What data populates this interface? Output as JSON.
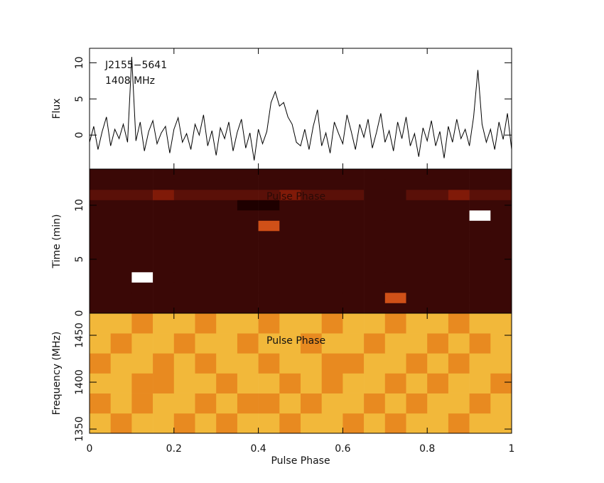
{
  "chart_data": [
    {
      "type": "line",
      "ylabel": "Flux",
      "annotations": [
        "J2155−5641",
        "1408 MHz"
      ],
      "color": "#000000",
      "x": [
        0,
        0.01,
        0.02,
        0.03,
        0.04,
        0.05,
        0.06,
        0.07,
        0.08,
        0.09,
        0.1,
        0.11,
        0.12,
        0.13,
        0.14,
        0.15,
        0.16,
        0.17,
        0.18,
        0.19,
        0.2,
        0.21,
        0.22,
        0.23,
        0.24,
        0.25,
        0.26,
        0.27,
        0.28,
        0.29,
        0.3,
        0.31,
        0.32,
        0.33,
        0.34,
        0.35,
        0.36,
        0.37,
        0.38,
        0.39,
        0.4,
        0.41,
        0.42,
        0.43,
        0.44,
        0.45,
        0.46,
        0.47,
        0.48,
        0.49,
        0.5,
        0.51,
        0.52,
        0.53,
        0.54,
        0.55,
        0.56,
        0.57,
        0.58,
        0.59,
        0.6,
        0.61,
        0.62,
        0.63,
        0.64,
        0.65,
        0.66,
        0.67,
        0.68,
        0.69,
        0.7,
        0.71,
        0.72,
        0.73,
        0.74,
        0.75,
        0.76,
        0.77,
        0.78,
        0.79,
        0.8,
        0.81,
        0.82,
        0.83,
        0.84,
        0.85,
        0.86,
        0.87,
        0.88,
        0.89,
        0.9,
        0.91,
        0.92,
        0.93,
        0.94,
        0.95,
        0.96,
        0.97,
        0.98,
        0.99,
        1
      ],
      "values": [
        -1,
        1.2,
        -2,
        0.5,
        2.5,
        -1.5,
        0.8,
        -0.5,
        1.5,
        -1,
        10.8,
        -0.8,
        1.8,
        -2.2,
        0.5,
        2,
        -1.2,
        0.3,
        1.2,
        -2.5,
        0.8,
        2.4,
        -1,
        0.2,
        -2,
        1.5,
        0,
        2.8,
        -1.5,
        0.6,
        -2.8,
        1,
        -0.5,
        1.8,
        -2.2,
        0.4,
        2.2,
        -1.8,
        0.3,
        -3.5,
        0.8,
        -1.2,
        0.5,
        4.5,
        6,
        4,
        4.5,
        2.5,
        1.5,
        -1,
        -1.5,
        0.8,
        -2,
        1.2,
        3.5,
        -1.5,
        0.3,
        -2.5,
        1.8,
        0.2,
        -1.2,
        2.8,
        0.5,
        -2,
        1.5,
        -0.3,
        2.2,
        -1.8,
        0.4,
        3,
        -1,
        0.6,
        -2.2,
        1.8,
        -0.5,
        2.5,
        -1.5,
        0.2,
        -3,
        1,
        -0.8,
        2,
        -1.5,
        0.5,
        -3.2,
        1.2,
        -1,
        2.2,
        -0.5,
        0.8,
        -1.5,
        2.5,
        9,
        1.5,
        -1,
        0.8,
        -2,
        1.8,
        -0.6,
        3,
        -2
      ],
      "xlim": [
        0,
        1
      ],
      "xticks": [
        0,
        0.2,
        0.4,
        0.6,
        0.8,
        1
      ],
      "ylim": [
        -4.7,
        12
      ],
      "yticks": [
        0,
        5,
        10
      ]
    },
    {
      "type": "heatmap",
      "ylabel": "Time (min)",
      "annotations": [
        "Pulse Phase"
      ],
      "colormap": "heat",
      "xlim": [
        0,
        1
      ],
      "xticks": [
        0,
        0.2,
        0.4,
        0.6,
        0.8,
        1
      ],
      "ylim": [
        0,
        13.35
      ],
      "yticks": [
        0,
        5,
        10
      ],
      "z": [
        [
          1,
          1,
          1,
          1,
          1,
          1,
          1,
          1,
          1,
          1,
          1,
          1,
          1,
          1,
          1,
          1,
          1,
          1,
          1,
          1
        ],
        [
          1,
          1,
          1,
          1,
          1,
          1,
          1,
          1,
          1,
          1,
          1,
          1,
          1,
          1,
          5,
          1,
          1,
          1,
          1,
          1
        ],
        [
          1,
          1,
          1,
          1,
          1,
          1,
          1,
          1,
          1,
          1,
          1,
          1,
          1,
          1,
          1,
          1,
          1,
          1,
          1,
          1
        ],
        [
          1,
          1,
          9,
          1,
          1,
          1,
          1,
          1,
          1,
          1,
          1,
          1,
          1,
          1,
          1,
          1,
          1,
          1,
          1,
          1
        ],
        [
          1,
          1,
          1,
          1,
          1,
          1,
          1,
          1,
          1,
          1,
          1,
          1,
          1,
          1,
          1,
          1,
          1,
          1,
          1,
          1
        ],
        [
          1,
          1,
          1,
          1,
          1,
          1,
          1,
          1,
          1,
          1,
          1,
          1,
          1,
          1,
          1,
          1,
          1,
          1,
          1,
          1
        ],
        [
          1,
          1,
          1,
          1,
          1,
          1,
          1,
          1,
          1,
          1,
          1,
          1,
          1,
          1,
          1,
          1,
          1,
          1,
          1,
          1
        ],
        [
          1,
          1,
          1,
          1,
          1,
          1,
          1,
          1,
          1,
          1,
          1,
          1,
          1,
          1,
          1,
          1,
          1,
          1,
          1,
          1
        ],
        [
          1,
          1,
          1,
          1,
          1,
          1,
          1,
          1,
          5,
          1,
          1,
          1,
          1,
          1,
          1,
          1,
          1,
          1,
          1,
          1
        ],
        [
          1,
          1,
          1,
          1,
          1,
          1,
          1,
          1,
          1,
          1,
          1,
          1,
          1,
          1,
          1,
          1,
          1,
          1,
          9,
          1
        ],
        [
          1,
          1,
          1,
          1,
          1,
          1,
          1,
          0,
          0,
          1,
          1,
          1,
          1,
          1,
          1,
          1,
          1,
          1,
          1,
          1
        ],
        [
          2,
          2,
          2,
          3,
          2,
          2,
          2,
          2,
          2,
          3,
          2,
          2,
          2,
          1,
          1,
          2,
          2,
          3,
          2,
          2
        ],
        [
          1,
          1,
          1,
          1,
          1,
          1,
          1,
          1,
          1,
          1,
          1,
          1,
          1,
          1,
          1,
          1,
          1,
          1,
          1,
          1
        ],
        [
          1,
          1,
          1,
          1,
          1,
          1,
          1,
          1,
          1,
          1,
          1,
          1,
          1,
          1,
          1,
          1,
          1,
          1,
          1,
          1
        ]
      ]
    },
    {
      "type": "heatmap",
      "ylabel": "Frequency (MHz)",
      "xlabel": "Pulse Phase",
      "annotations": [
        "Pulse Phase"
      ],
      "colormap": "heat",
      "xlim": [
        0,
        1
      ],
      "xticks": [
        0,
        0.2,
        0.4,
        0.6,
        0.8,
        1
      ],
      "ylim": [
        1345.5,
        1473.5
      ],
      "yticks": [
        1350,
        1400,
        1450
      ],
      "z": [
        [
          7,
          6,
          7,
          7,
          6,
          7,
          6,
          7,
          7,
          6,
          7,
          7,
          6,
          7,
          6,
          7,
          7,
          6,
          7,
          7
        ],
        [
          6,
          7,
          6,
          7,
          7,
          6,
          7,
          6,
          6,
          7,
          6,
          7,
          7,
          6,
          7,
          6,
          7,
          7,
          6,
          7
        ],
        [
          7,
          7,
          6,
          6,
          7,
          7,
          6,
          7,
          7,
          6,
          7,
          6,
          7,
          7,
          6,
          7,
          6,
          7,
          7,
          6
        ],
        [
          6,
          7,
          7,
          6,
          7,
          6,
          7,
          7,
          6,
          7,
          7,
          6,
          6,
          7,
          7,
          6,
          7,
          6,
          7,
          7
        ],
        [
          7,
          6,
          7,
          7,
          6,
          7,
          7,
          6,
          7,
          7,
          6,
          7,
          7,
          6,
          7,
          7,
          6,
          7,
          6,
          7
        ],
        [
          7,
          7,
          6,
          7,
          7,
          6,
          7,
          7,
          6,
          7,
          7,
          6,
          7,
          7,
          6,
          7,
          7,
          6,
          7,
          7
        ]
      ]
    }
  ]
}
